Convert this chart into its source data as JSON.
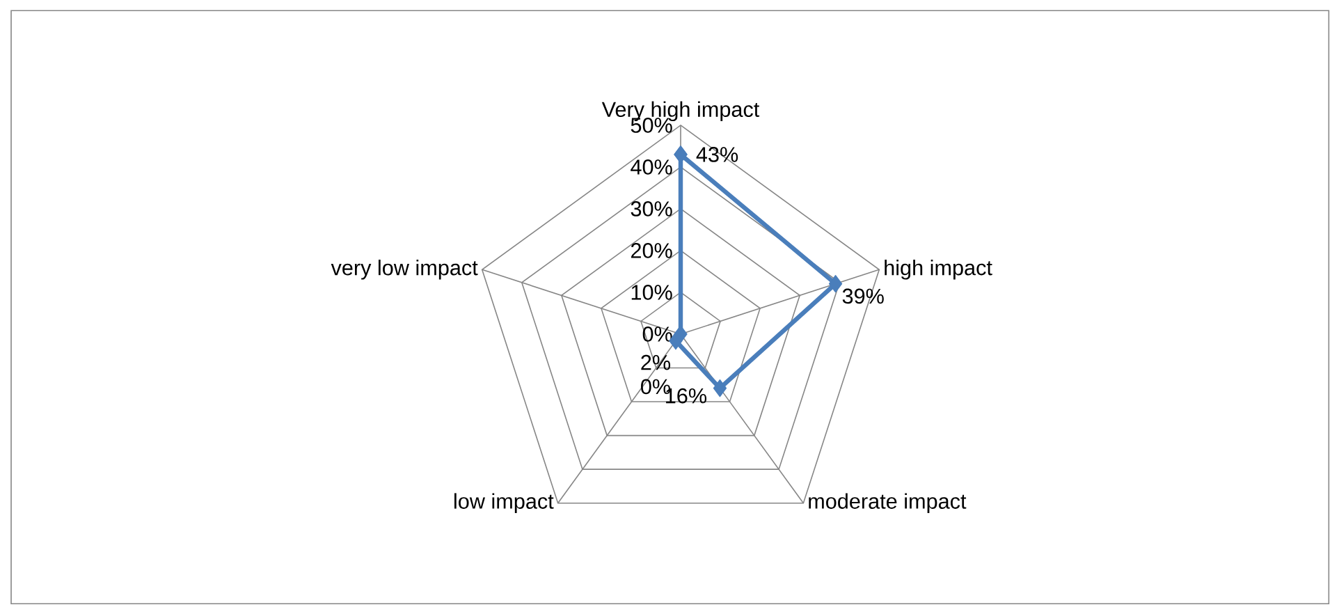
{
  "chart_data": {
    "type": "radar",
    "categories": [
      "Very high impact",
      "high impact",
      "moderate impact",
      "low impact",
      "very low impact"
    ],
    "series": [
      {
        "color": "#4a7ebb",
        "values": [
          43,
          39,
          16,
          2,
          0
        ],
        "value_labels": [
          "43%",
          "39%",
          "16%",
          "2%",
          "0%"
        ]
      }
    ],
    "ylim": [
      0,
      50
    ],
    "yticks": [
      {
        "value": 0,
        "label": "0%"
      },
      {
        "value": 10,
        "label": "10%"
      },
      {
        "value": 20,
        "label": "20%"
      },
      {
        "value": 30,
        "label": "30%"
      },
      {
        "value": 40,
        "label": "40%"
      },
      {
        "value": 50,
        "label": "50%"
      }
    ],
    "grid": true,
    "marker": "diamond",
    "line_style": "solid"
  }
}
